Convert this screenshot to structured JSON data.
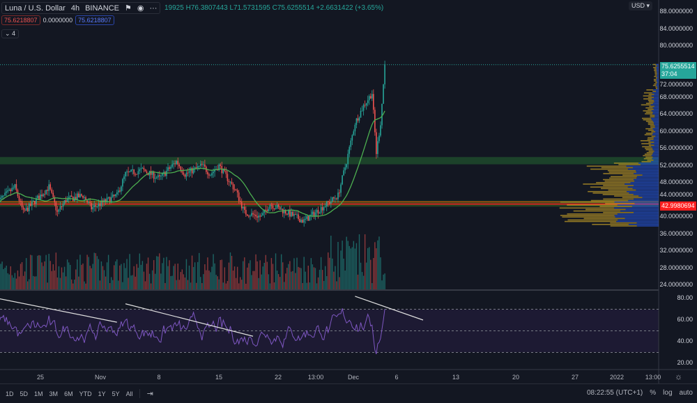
{
  "header": {
    "symbol": "Luna / U.S. Dollar",
    "interval": "4h",
    "exchange": "BINANCE",
    "ohlc_partial": "19925",
    "high": "H76.3807443",
    "low": "L71.5731595",
    "close": "C75.6255514",
    "change": "+2.6631422 (+3.65%)",
    "indicator_values": [
      "75.6218807",
      "0.0000000",
      "75.6218807"
    ],
    "collapsed_count": "4",
    "currency": "USD"
  },
  "price_axis": {
    "labels": [
      "88.0000000",
      "84.0000000",
      "80.0000000",
      "72.0000000",
      "68.0000000",
      "64.0000000",
      "60.0000000",
      "56.0000000",
      "52.0000000",
      "48.0000000",
      "44.0000000",
      "40.0000000",
      "36.0000000",
      "32.0000000",
      "28.0000000",
      "24.0000000"
    ],
    "last_price": "75.6255514",
    "countdown": "37:04",
    "level_price": "42.9980694"
  },
  "rsi_axis": {
    "labels": [
      "80.00",
      "60.00",
      "40.00",
      "20.00"
    ]
  },
  "time_axis": {
    "labels": [
      "25",
      "Nov",
      "8",
      "15",
      "22",
      "13:00",
      "Dec",
      "6",
      "13",
      "20",
      "27",
      "2022",
      "13:00"
    ]
  },
  "toolbar": {
    "ranges": [
      "1D",
      "5D",
      "1M",
      "3M",
      "6M",
      "YTD",
      "1Y",
      "5Y",
      "All"
    ],
    "clock": "08:22:55 (UTC+1)",
    "percent": "%",
    "log": "log",
    "auto": "auto"
  },
  "colors": {
    "up": "#26a69a",
    "down": "#ef5350",
    "ma": "#4caf50",
    "rsi": "#7e57c2",
    "zone_green": "#1e4d2b",
    "level": "#ff1f1f",
    "volume_profile_up": "#2962ff",
    "volume_profile_down": "#c9a227"
  },
  "chart_data": {
    "type": "candlestick",
    "interval": "4h",
    "ylim": [
      24,
      88
    ],
    "rsi_ylim": [
      15,
      85
    ],
    "close_keypoints": [
      [
        "2021-10-20",
        43.5
      ],
      [
        "2021-10-22",
        47
      ],
      [
        "2021-10-23",
        41
      ],
      [
        "2021-10-26",
        47
      ],
      [
        "2021-10-27",
        41
      ],
      [
        "2021-10-28",
        44
      ],
      [
        "2021-10-30",
        45
      ],
      [
        "2021-10-31",
        42
      ],
      [
        "2021-11-03",
        45
      ],
      [
        "2021-11-04",
        50
      ],
      [
        "2021-11-06",
        51
      ],
      [
        "2021-11-08",
        49
      ],
      [
        "2021-11-10",
        53
      ],
      [
        "2021-11-11",
        50
      ],
      [
        "2021-11-13",
        52
      ],
      [
        "2021-11-14",
        50
      ],
      [
        "2021-11-15",
        52
      ],
      [
        "2021-11-17",
        46
      ],
      [
        "2021-11-18",
        41
      ],
      [
        "2021-11-20",
        40
      ],
      [
        "2021-11-21",
        43
      ],
      [
        "2021-11-24",
        40
      ],
      [
        "2021-11-25",
        39
      ],
      [
        "2021-11-27",
        42
      ],
      [
        "2021-11-29",
        45
      ],
      [
        "2021-11-30",
        53
      ],
      [
        "2021-12-01",
        62
      ],
      [
        "2021-12-02",
        66
      ],
      [
        "2021-12-03",
        69
      ],
      [
        "2021-12-03T12",
        55
      ],
      [
        "2021-12-04",
        62
      ],
      [
        "2021-12-04T12",
        75.63
      ]
    ],
    "zones": [
      {
        "from": 52.3,
        "to": 54
      },
      {
        "from": 42.4,
        "to": 43.8
      }
    ],
    "level": 42.998,
    "rsi_levels": [
      70,
      50,
      30
    ],
    "rsi_trendlines": [
      [
        [
          "2021-10-20",
          80
        ],
        [
          "2021-11-03",
          58
        ]
      ],
      [
        [
          "2021-11-04",
          75
        ],
        [
          "2021-11-19",
          45
        ]
      ],
      [
        [
          "2021-12-01",
          82
        ],
        [
          "2021-12-09",
          60
        ]
      ]
    ]
  }
}
